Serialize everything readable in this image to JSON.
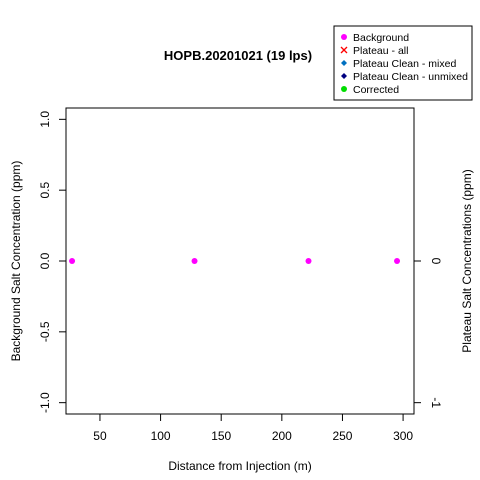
{
  "chart_data": {
    "type": "scatter",
    "title": "HOPB.20201021 (19 lps)",
    "xlabel": "Distance from Injection (m)",
    "ylabel": "Background Salt Concentration (ppm)",
    "y2label": "Plateau Salt Concentrations (ppm)",
    "xlim": [
      22,
      309
    ],
    "ylim": [
      -1.08,
      1.08
    ],
    "xticks": [
      50,
      100,
      150,
      200,
      250,
      300
    ],
    "yticks": [
      -1.0,
      -0.5,
      0.0,
      0.5,
      1.0
    ],
    "ytick_labels": [
      "-1.0",
      "-0.5",
      "0.0",
      "0.5",
      "1.0"
    ],
    "y2ticks": [
      -1,
      0
    ],
    "y2tick_labels": [
      "-1",
      "0"
    ],
    "legend_position": "top-right",
    "legend": [
      {
        "label": "Background",
        "marker": "dot",
        "color": "#ff00ff"
      },
      {
        "label": "Plateau - all",
        "marker": "x",
        "color": "#ff0000"
      },
      {
        "label": "Plateau Clean - mixed",
        "marker": "diamond",
        "color": "#0070c0"
      },
      {
        "label": "Plateau Clean - unmixed",
        "marker": "diamond",
        "color": "#000080"
      },
      {
        "label": "Corrected",
        "marker": "dot",
        "color": "#00dd00"
      }
    ],
    "series": [
      {
        "name": "Background",
        "color": "#ff00ff",
        "points": [
          {
            "x": 27,
            "y": 0
          },
          {
            "x": 128,
            "y": 0
          },
          {
            "x": 222,
            "y": 0
          },
          {
            "x": 295,
            "y": 0
          }
        ]
      }
    ]
  }
}
